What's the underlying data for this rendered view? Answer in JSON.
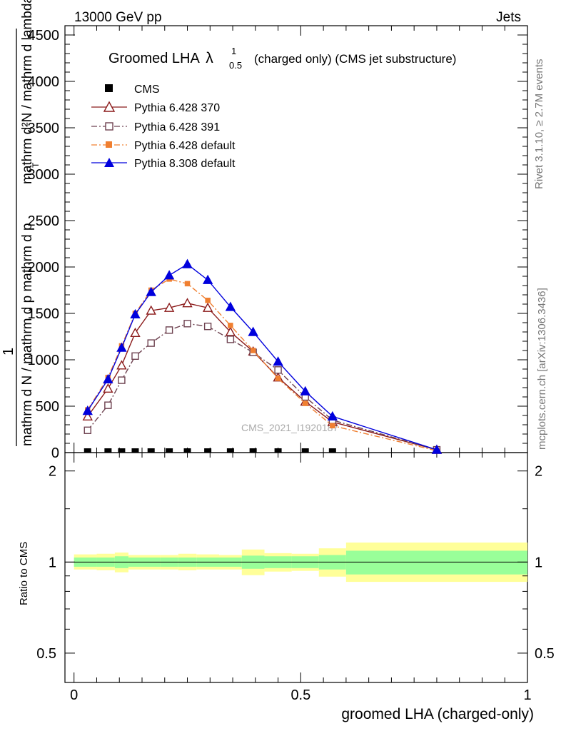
{
  "header": {
    "energy_label": "13000 GeV pp",
    "process_label": "Jets"
  },
  "side_labels": {
    "rivet": "Rivet 3.1.10, ≥ 2.7M events",
    "mcplots": "mcplots.cern.ch [arXiv:1306.3436]"
  },
  "watermark": "CMS_2021_I1920187",
  "chart_data": {
    "type": "line",
    "title_main": "Groomed LHA",
    "title_symbol": "λ",
    "title_superscript": "1",
    "title_subscript": "0.5",
    "title_rest": "(charged only) (CMS jet substructure)",
    "xlabel": "groomed LHA (charged-only)",
    "ylabel_numerator": "1",
    "ylabel_denominator_line1": "mathrm d N / mathrm d p mathrm d p",
    "ylabel_denominator_line2": "mathrm d²N / mathrm d lambda",
    "ylabel_sub": "T",
    "ratio_ylabel": "Ratio to CMS",
    "xlim": [
      -0.02,
      1.0
    ],
    "ylim": [
      0,
      4600
    ],
    "ratio_ylim": [
      0.4,
      2.3
    ],
    "x_ticks": [
      "0",
      "0.5",
      "1"
    ],
    "x_tick_values": [
      0,
      0.5,
      1
    ],
    "y_ticks": [
      "0",
      "500",
      "1000",
      "1500",
      "2000",
      "2500",
      "3000",
      "3500",
      "4000",
      "4500"
    ],
    "y_tick_values": [
      0,
      500,
      1000,
      1500,
      2000,
      2500,
      3000,
      3500,
      4000,
      4500
    ],
    "ratio_ticks": [
      "0.5",
      "1",
      "2"
    ],
    "ratio_tick_values": [
      0.5,
      1,
      2
    ],
    "cms": {
      "name": "CMS",
      "x": [
        0.03,
        0.075,
        0.105,
        0.135,
        0.17,
        0.21,
        0.25,
        0.295,
        0.345,
        0.395,
        0.45,
        0.51,
        0.57
      ],
      "y": [
        0,
        0,
        0,
        0,
        0,
        0,
        0,
        0,
        0,
        0,
        0,
        0,
        0
      ]
    },
    "series": [
      {
        "name": "Pythia 6.428 370",
        "color": "#8b1a1a",
        "marker": "triangle-open",
        "dash": "",
        "x": [
          0.03,
          0.075,
          0.105,
          0.135,
          0.17,
          0.21,
          0.25,
          0.295,
          0.345,
          0.395,
          0.45,
          0.51,
          0.57,
          0.8
        ],
        "y": [
          390,
          690,
          940,
          1290,
          1530,
          1560,
          1610,
          1560,
          1300,
          1090,
          810,
          550,
          330,
          30
        ]
      },
      {
        "name": "Pythia 6.428 391",
        "color": "#6e4250",
        "marker": "square-open",
        "dash": "8,3,2,3",
        "x": [
          0.03,
          0.075,
          0.105,
          0.135,
          0.17,
          0.21,
          0.25,
          0.295,
          0.345,
          0.395,
          0.45,
          0.51,
          0.57,
          0.8
        ],
        "y": [
          240,
          510,
          780,
          1040,
          1180,
          1320,
          1390,
          1360,
          1220,
          1080,
          890,
          600,
          350,
          30
        ]
      },
      {
        "name": "Pythia 6.428 default",
        "color": "#f07f30",
        "marker": "square-filled",
        "dash": "8,3,2,3",
        "x": [
          0.03,
          0.075,
          0.105,
          0.135,
          0.17,
          0.21,
          0.25,
          0.295,
          0.345,
          0.395,
          0.45,
          0.51,
          0.57,
          0.8
        ],
        "y": [
          460,
          810,
          1150,
          1500,
          1750,
          1870,
          1820,
          1640,
          1370,
          1100,
          800,
          530,
          290,
          20
        ]
      },
      {
        "name": "Pythia 8.308 default",
        "color": "#0000dd",
        "marker": "triangle-filled",
        "dash": "",
        "x": [
          0.03,
          0.075,
          0.105,
          0.135,
          0.17,
          0.21,
          0.25,
          0.295,
          0.345,
          0.395,
          0.45,
          0.51,
          0.57,
          0.8
        ],
        "y": [
          450,
          790,
          1130,
          1490,
          1730,
          1910,
          2030,
          1860,
          1570,
          1300,
          980,
          660,
          390,
          30
        ]
      }
    ],
    "ratio_bands": {
      "bins": [
        [
          0,
          0.05
        ],
        [
          0.05,
          0.09
        ],
        [
          0.09,
          0.12
        ],
        [
          0.12,
          0.15
        ],
        [
          0.15,
          0.19
        ],
        [
          0.19,
          0.23
        ],
        [
          0.23,
          0.27
        ],
        [
          0.27,
          0.32
        ],
        [
          0.32,
          0.37
        ],
        [
          0.37,
          0.42
        ],
        [
          0.42,
          0.48
        ],
        [
          0.48,
          0.54
        ],
        [
          0.54,
          0.6
        ],
        [
          0.6,
          1.0
        ]
      ],
      "stat_lo": [
        0.965,
        0.965,
        0.955,
        0.965,
        0.965,
        0.965,
        0.965,
        0.965,
        0.965,
        0.95,
        0.955,
        0.955,
        0.945,
        0.91
      ],
      "stat_hi": [
        1.035,
        1.035,
        1.045,
        1.035,
        1.035,
        1.035,
        1.035,
        1.035,
        1.035,
        1.05,
        1.045,
        1.045,
        1.055,
        1.09
      ],
      "total_lo": [
        0.945,
        0.94,
        0.925,
        0.945,
        0.945,
        0.945,
        0.94,
        0.945,
        0.945,
        0.905,
        0.93,
        0.935,
        0.895,
        0.86
      ],
      "total_hi": [
        1.06,
        1.065,
        1.075,
        1.055,
        1.055,
        1.055,
        1.065,
        1.06,
        1.055,
        1.1,
        1.07,
        1.065,
        1.11,
        1.16
      ],
      "stat_color": "#99ff99",
      "total_color": "#ffff99"
    }
  }
}
